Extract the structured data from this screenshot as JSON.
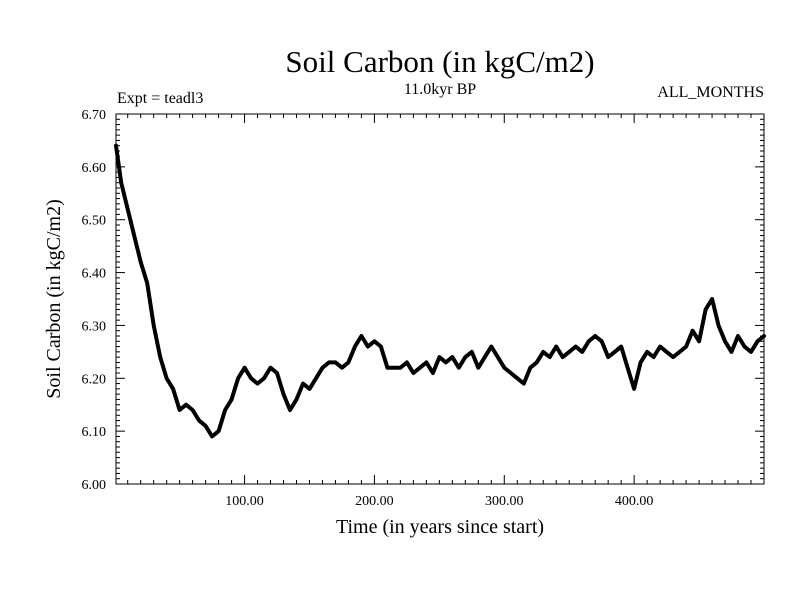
{
  "chart_data": {
    "type": "line",
    "title": "Soil Carbon (in kgC/m2)",
    "subtitle": "11.0kyr BP",
    "left_label": "Expt = teadl3",
    "right_label": "ALL_MONTHS",
    "xlabel": "Time (in years since start)",
    "ylabel": "Soil Carbon (in kgC/m2)",
    "xlim": [
      1,
      500
    ],
    "ylim": [
      6.0,
      6.7
    ],
    "x_ticks": [
      100,
      200,
      300,
      400
    ],
    "x_tick_labels": [
      "100.00",
      "200.00",
      "300.00",
      "400.00"
    ],
    "y_ticks": [
      6.0,
      6.1,
      6.2,
      6.3,
      6.4,
      6.5,
      6.6,
      6.7
    ],
    "y_tick_labels": [
      "6.00",
      "6.10",
      "6.20",
      "6.30",
      "6.40",
      "6.50",
      "6.60",
      "6.70"
    ],
    "grid": false,
    "series": [
      {
        "name": "Soil Carbon",
        "color": "#000000",
        "x": [
          1,
          5,
          10,
          15,
          20,
          25,
          30,
          35,
          40,
          45,
          50,
          55,
          60,
          65,
          70,
          75,
          80,
          85,
          90,
          95,
          100,
          105,
          110,
          115,
          120,
          125,
          130,
          135,
          140,
          145,
          150,
          155,
          160,
          165,
          170,
          175,
          180,
          185,
          190,
          195,
          200,
          205,
          210,
          215,
          220,
          225,
          230,
          235,
          240,
          245,
          250,
          255,
          260,
          265,
          270,
          275,
          280,
          285,
          290,
          295,
          300,
          305,
          310,
          315,
          320,
          325,
          330,
          335,
          340,
          345,
          350,
          355,
          360,
          365,
          370,
          375,
          380,
          385,
          390,
          395,
          400,
          405,
          410,
          415,
          420,
          425,
          430,
          435,
          440,
          445,
          450,
          455,
          460,
          465,
          470,
          475,
          480,
          485,
          490,
          495,
          500
        ],
        "values": [
          6.64,
          6.57,
          6.52,
          6.47,
          6.42,
          6.38,
          6.3,
          6.24,
          6.2,
          6.18,
          6.14,
          6.15,
          6.14,
          6.12,
          6.11,
          6.09,
          6.1,
          6.14,
          6.16,
          6.2,
          6.22,
          6.2,
          6.19,
          6.2,
          6.22,
          6.21,
          6.17,
          6.14,
          6.16,
          6.19,
          6.18,
          6.2,
          6.22,
          6.23,
          6.23,
          6.22,
          6.23,
          6.26,
          6.28,
          6.26,
          6.27,
          6.26,
          6.22,
          6.22,
          6.22,
          6.23,
          6.21,
          6.22,
          6.23,
          6.21,
          6.24,
          6.23,
          6.24,
          6.22,
          6.24,
          6.25,
          6.22,
          6.24,
          6.26,
          6.24,
          6.22,
          6.21,
          6.2,
          6.19,
          6.22,
          6.23,
          6.25,
          6.24,
          6.26,
          6.24,
          6.25,
          6.26,
          6.25,
          6.27,
          6.28,
          6.27,
          6.24,
          6.25,
          6.26,
          6.22,
          6.18,
          6.23,
          6.25,
          6.24,
          6.26,
          6.25,
          6.24,
          6.25,
          6.26,
          6.29,
          6.27,
          6.33,
          6.35,
          6.3,
          6.27,
          6.25,
          6.28,
          6.26,
          6.25,
          6.27,
          6.28
        ]
      }
    ]
  }
}
